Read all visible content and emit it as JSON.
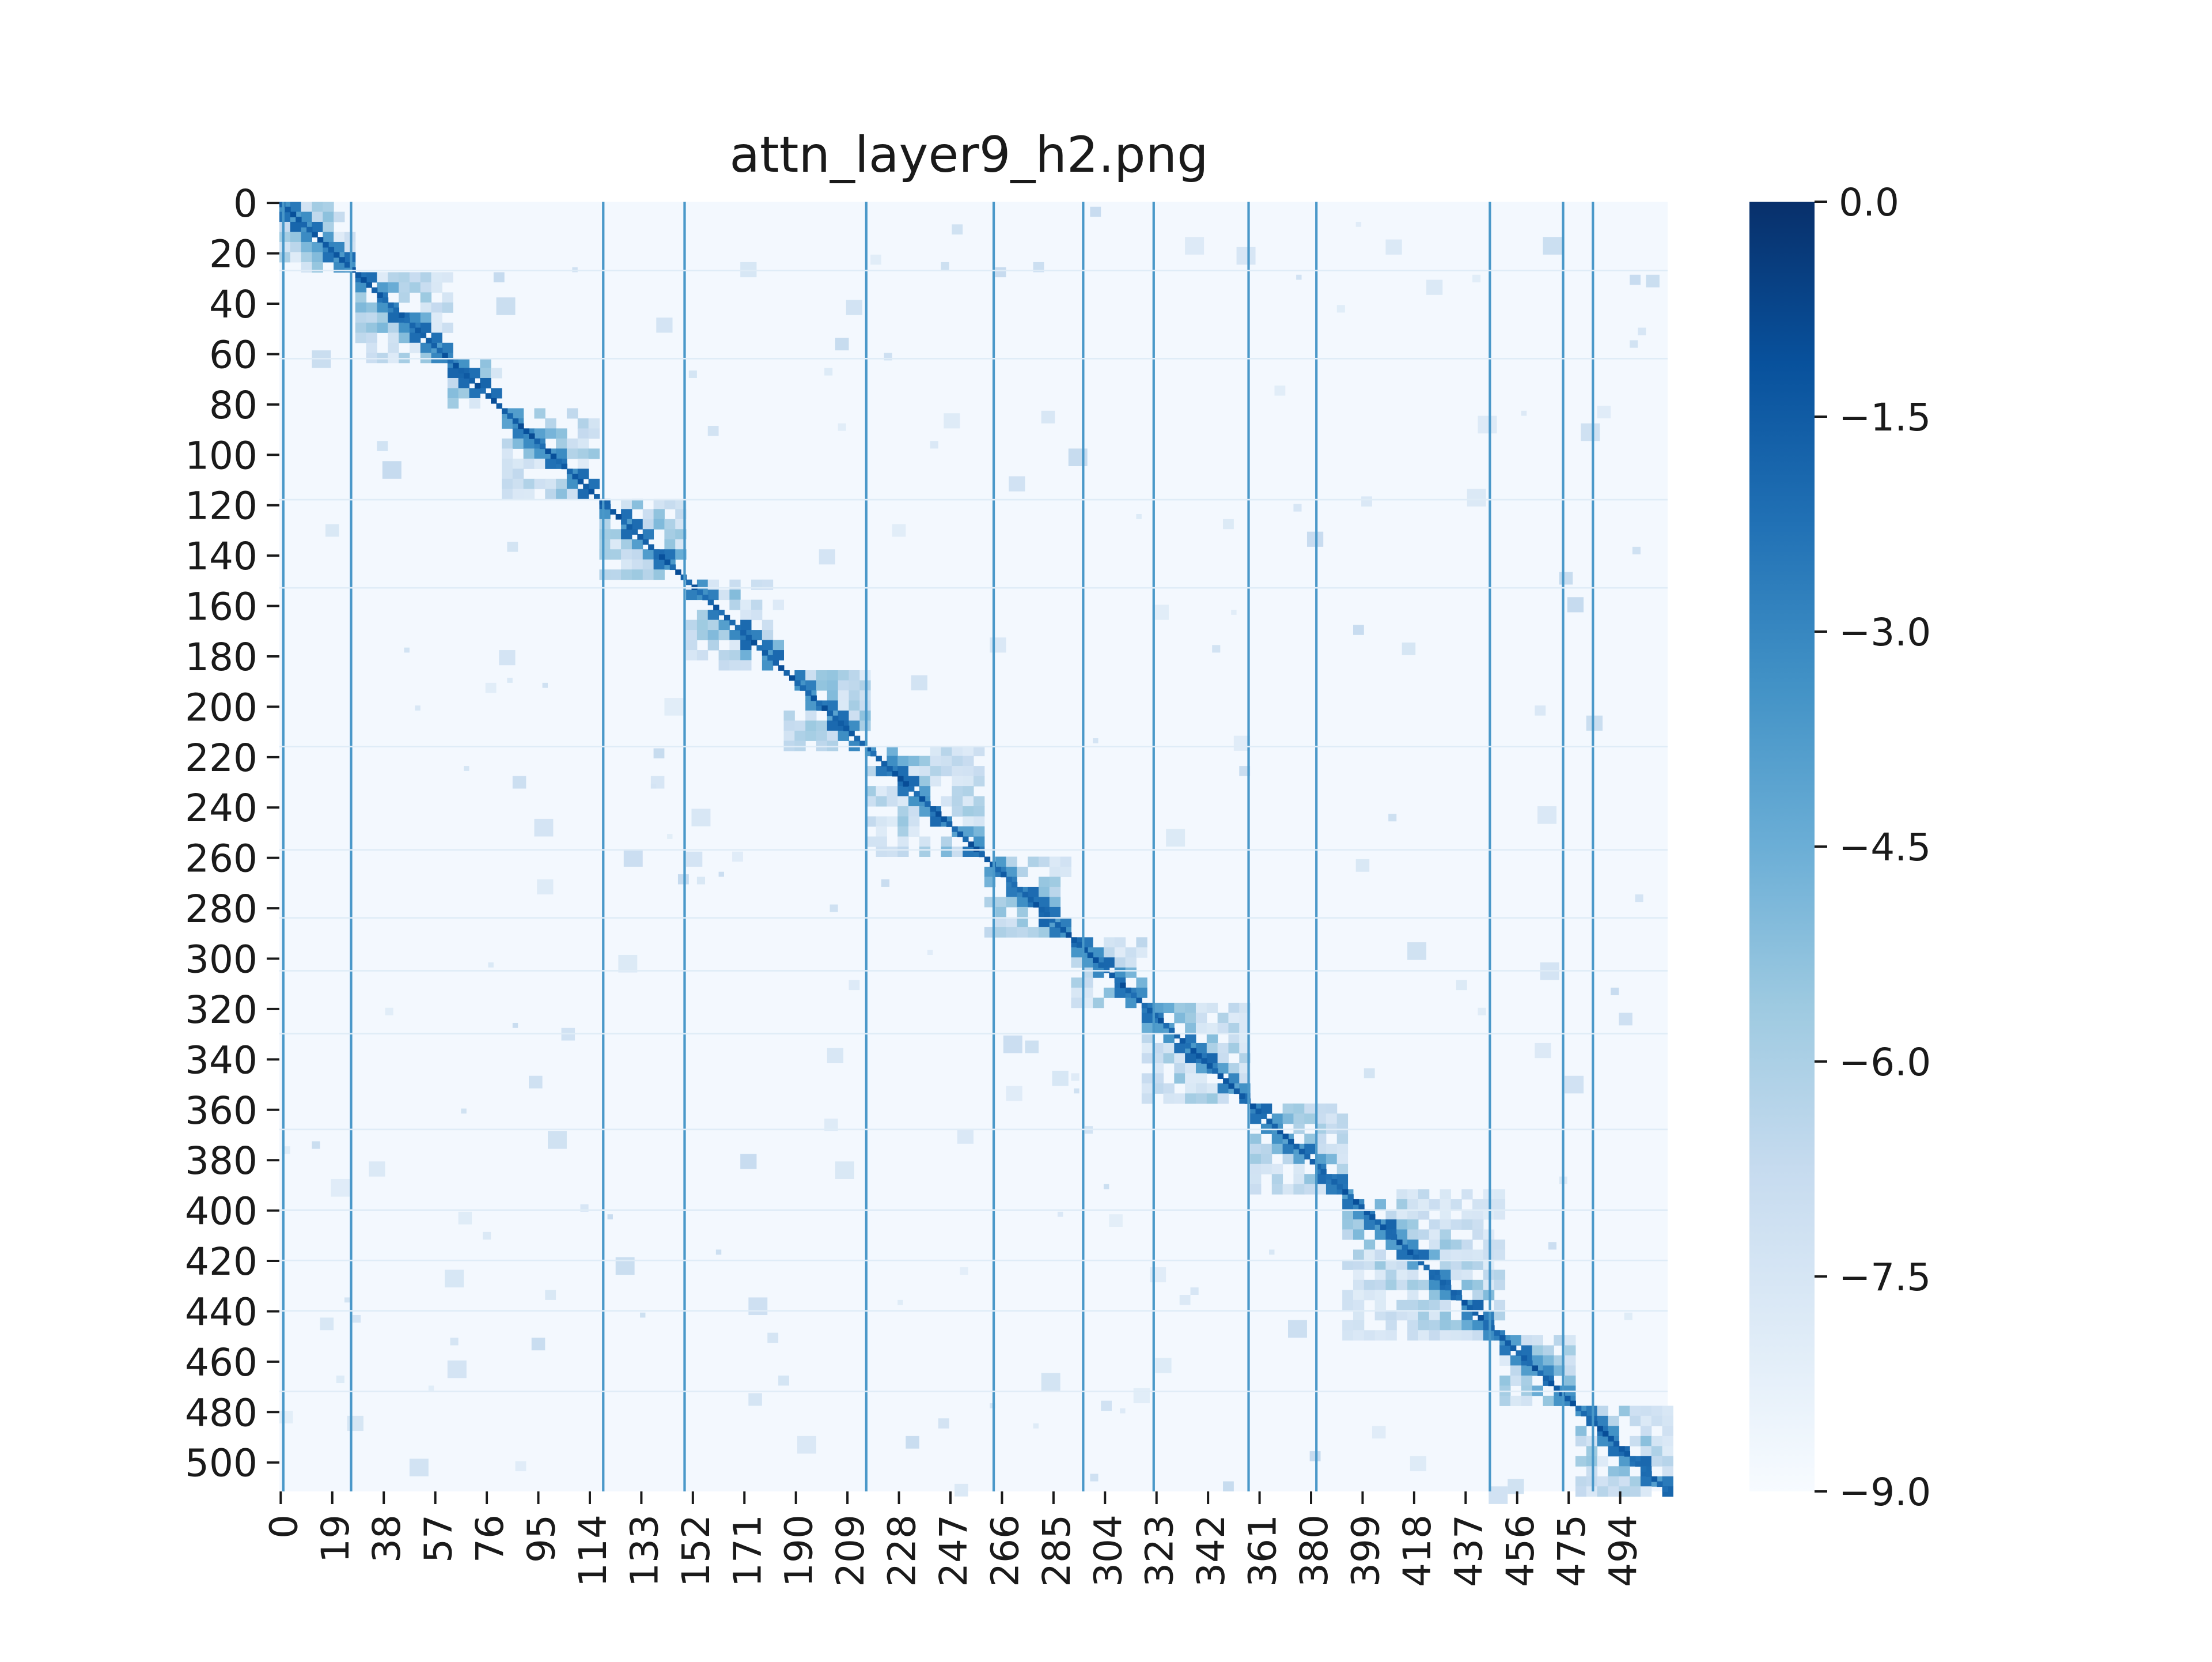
{
  "chart_data": {
    "type": "heatmap",
    "title": "attn_layer9_h2.png",
    "xlabel": "",
    "ylabel": "",
    "size": 512,
    "x_tick_labels": [
      "0",
      "19",
      "38",
      "57",
      "76",
      "95",
      "114",
      "133",
      "152",
      "171",
      "190",
      "209",
      "228",
      "247",
      "266",
      "285",
      "304",
      "323",
      "342",
      "361",
      "380",
      "399",
      "418",
      "437",
      "456",
      "475",
      "494"
    ],
    "y_tick_labels": [
      "0",
      "20",
      "40",
      "60",
      "80",
      "100",
      "120",
      "140",
      "160",
      "180",
      "200",
      "220",
      "240",
      "260",
      "280",
      "300",
      "320",
      "340",
      "360",
      "380",
      "400",
      "420",
      "440",
      "460",
      "480",
      "500"
    ],
    "colorbar": {
      "range": [
        -9.0,
        0.0
      ],
      "tick_labels": [
        "0.0",
        "−1.5",
        "−3.0",
        "−4.5",
        "−6.0",
        "−7.5",
        "−9.0"
      ],
      "tick_values": [
        0.0,
        -1.5,
        -3.0,
        -4.5,
        -6.0,
        -7.5,
        -9.0
      ],
      "colormap": "Blues",
      "color_low": "#f7fbff",
      "color_high": "#08306b"
    },
    "attention_blocks": [
      [
        0,
        28
      ],
      [
        28,
        62
      ],
      [
        62,
        82
      ],
      [
        82,
        118
      ],
      [
        118,
        150
      ],
      [
        150,
        186
      ],
      [
        186,
        216
      ],
      [
        216,
        260
      ],
      [
        260,
        292
      ],
      [
        292,
        318
      ],
      [
        318,
        358
      ],
      [
        358,
        392
      ],
      [
        392,
        450
      ],
      [
        450,
        478
      ],
      [
        478,
        512
      ]
    ],
    "column_lines": [
      1,
      26,
      119,
      149,
      216,
      263,
      296,
      322,
      357,
      382,
      446,
      473,
      484
    ],
    "row_lines": [
      27,
      62,
      118,
      153,
      216,
      257,
      284,
      305,
      330,
      368,
      400,
      420,
      440,
      472
    ]
  }
}
